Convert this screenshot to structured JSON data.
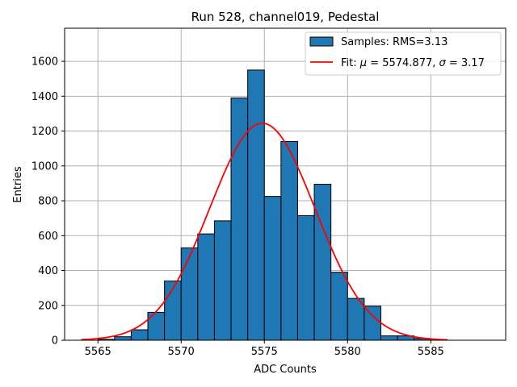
{
  "chart_data": {
    "type": "bar",
    "title": "Run 528, channel019, Pedestal",
    "xlabel": "ADC Counts",
    "ylabel": "Entries",
    "xlim": [
      5563,
      5589.5
    ],
    "ylim": [
      0,
      1790
    ],
    "xticks": [
      5565,
      5570,
      5575,
      5580,
      5585
    ],
    "yticks": [
      0,
      200,
      400,
      600,
      800,
      1000,
      1200,
      1400,
      1600
    ],
    "grid": true,
    "legend_position": "top-right",
    "bin_width": 1,
    "colors": {
      "bars": "#1f77b4",
      "bar_edge": "#000000",
      "fit": "#ff0000"
    },
    "series": [
      {
        "name": "Samples: RMS=3.13",
        "kind": "histogram",
        "bins": [
          {
            "x": 5565.5,
            "value": 5
          },
          {
            "x": 5566.5,
            "value": 20
          },
          {
            "x": 5567.5,
            "value": 60
          },
          {
            "x": 5568.5,
            "value": 160
          },
          {
            "x": 5569.5,
            "value": 340
          },
          {
            "x": 5570.5,
            "value": 530
          },
          {
            "x": 5571.5,
            "value": 610
          },
          {
            "x": 5572.5,
            "value": 685
          },
          {
            "x": 5573.5,
            "value": 1390
          },
          {
            "x": 5574.5,
            "value": 1550
          },
          {
            "x": 5575.5,
            "value": 825
          },
          {
            "x": 5576.5,
            "value": 1140
          },
          {
            "x": 5577.5,
            "value": 715
          },
          {
            "x": 5578.5,
            "value": 895
          },
          {
            "x": 5579.5,
            "value": 390
          },
          {
            "x": 5580.5,
            "value": 240
          },
          {
            "x": 5581.5,
            "value": 195
          },
          {
            "x": 5582.5,
            "value": 25
          },
          {
            "x": 5583.5,
            "value": 25
          },
          {
            "x": 5584.5,
            "value": 10
          }
        ]
      },
      {
        "name_prefix": "Fit: ",
        "name_mu": "μ",
        "name_mu_value": " = 5574.877, ",
        "name_sigma": "σ",
        "name_sigma_value": " = 3.17",
        "kind": "gaussian-fit",
        "mu": 5574.877,
        "sigma": 3.17,
        "amplitude": 1245,
        "x_range": [
          5564,
          5586
        ]
      }
    ]
  }
}
